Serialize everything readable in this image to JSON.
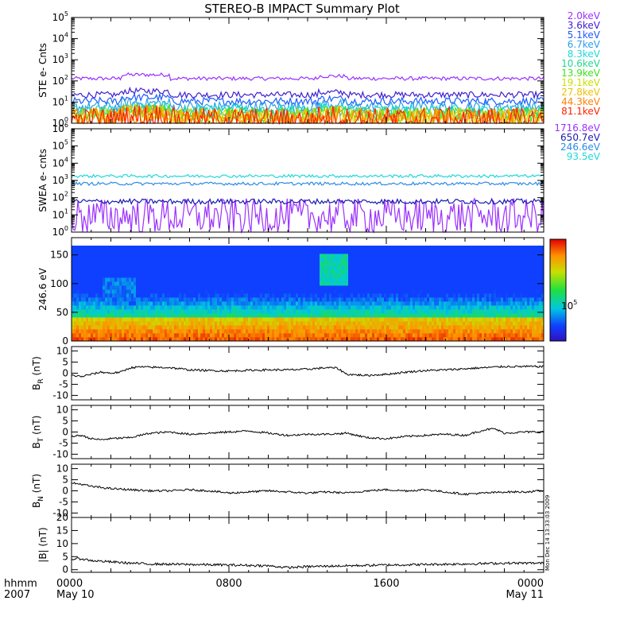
{
  "title": "STEREO-B IMPACT Summary Plot",
  "footer": {
    "row_label": "hhmm",
    "year": "2007",
    "date_start": "May 10",
    "date_end": "May 11"
  },
  "timestamp": "Mon Dec 14 13:33:03 2009",
  "chart_data": [
    {
      "id": "ste",
      "type": "line",
      "ylabel": "STE e- Cnts",
      "yscale": "log",
      "ylim": [
        1,
        100000
      ],
      "yticks": [
        {
          "value": 1,
          "base": "10",
          "exp": "0"
        },
        {
          "value": 10,
          "base": "10",
          "exp": "1"
        },
        {
          "value": 100,
          "base": "10",
          "exp": "2"
        },
        {
          "value": 1000,
          "base": "10",
          "exp": "3"
        },
        {
          "value": 10000,
          "base": "10",
          "exp": "4"
        },
        {
          "value": 100000,
          "base": "10",
          "exp": "5"
        }
      ],
      "xlim": [
        0,
        24
      ],
      "series": [
        {
          "name": "2.0keV",
          "color": "#9b30ff",
          "level": 130,
          "noise": 0.03
        },
        {
          "name": "3.6keV",
          "color": "#4020d0",
          "level": 22,
          "noise": 0.05
        },
        {
          "name": "5.1keV",
          "color": "#1e5aff",
          "level": 11,
          "noise": 0.06
        },
        {
          "name": "6.7keV",
          "color": "#2aa0e6",
          "level": 6,
          "noise": 0.08
        },
        {
          "name": "8.3keV",
          "color": "#20d8d8",
          "level": 4,
          "noise": 0.09
        },
        {
          "name": "10.6keV",
          "color": "#20d890",
          "level": 3,
          "noise": 0.1
        },
        {
          "name": "13.9keV",
          "color": "#40e020",
          "level": 2.4,
          "noise": 0.12
        },
        {
          "name": "19.1keV",
          "color": "#c8e000",
          "level": 2,
          "noise": 0.14
        },
        {
          "name": "27.8keV",
          "color": "#f0c000",
          "level": 1.7,
          "noise": 0.16
        },
        {
          "name": "44.3keV",
          "color": "#ff8000",
          "level": 1.5,
          "noise": 0.18
        },
        {
          "name": "81.1keV",
          "color": "#ff2000",
          "level": 1.4,
          "noise": 0.2
        }
      ]
    },
    {
      "id": "swea",
      "type": "line",
      "ylabel": "SWEA e- cnts",
      "yscale": "log",
      "ylim": [
        1,
        1000000
      ],
      "yticks": [
        {
          "value": 1,
          "base": "10",
          "exp": "0"
        },
        {
          "value": 10,
          "base": "10",
          "exp": "1"
        },
        {
          "value": 100,
          "base": "10",
          "exp": "2"
        },
        {
          "value": 1000,
          "base": "10",
          "exp": "3"
        },
        {
          "value": 10000,
          "base": "10",
          "exp": "4"
        },
        {
          "value": 100000,
          "base": "10",
          "exp": "5"
        },
        {
          "value": 1000000,
          "base": "10",
          "exp": "6"
        }
      ],
      "xlim": [
        0,
        24
      ],
      "series": [
        {
          "name": "1716.8eV",
          "color": "#9b30ff",
          "level": 8,
          "noise": 0.35
        },
        {
          "name": "650.7eV",
          "color": "#1a1ab0",
          "level": 60,
          "noise": 0.05
        },
        {
          "name": "246.6eV",
          "color": "#2a8ae6",
          "level": 650,
          "noise": 0.03
        },
        {
          "name": "93.5eV",
          "color": "#20d8d8",
          "level": 1800,
          "noise": 0.03
        }
      ]
    },
    {
      "id": "pad",
      "type": "heatmap",
      "ylabel": "246.6 eV",
      "ylim": [
        0,
        180
      ],
      "yticks": [
        0,
        50,
        100,
        150
      ],
      "xlim": [
        0,
        24
      ],
      "colorbar": {
        "label": "10",
        "label_exp": "5"
      }
    },
    {
      "id": "br",
      "type": "line",
      "ylabel_base": "B",
      "ylabel_sub": "R",
      "ylabel_unit": "(nT)",
      "ylim": [
        -12,
        12
      ],
      "yticks": [
        -10,
        -5,
        0,
        5,
        10
      ],
      "xlim": [
        0,
        24
      ],
      "x": [
        0,
        0.5,
        1.0,
        1.5,
        2.0,
        2.5,
        3.0,
        3.5,
        4.0,
        5.0,
        6.0,
        7.0,
        8.0,
        9.0,
        10.0,
        11.0,
        12.0,
        13.0,
        13.5,
        14.0,
        15.0,
        16.0,
        17.0,
        18.0,
        19.0,
        20.0,
        21.0,
        22.0,
        23.0,
        24.0
      ],
      "values": [
        -1,
        -1.5,
        -0.5,
        0.5,
        0,
        0.5,
        2.5,
        2.8,
        2.7,
        2.5,
        1.5,
        1.2,
        1.0,
        1.3,
        1.5,
        1.5,
        1.8,
        2.5,
        2.3,
        -0.5,
        -1.0,
        -0.5,
        0.5,
        1.2,
        1.5,
        2.0,
        2.5,
        3.0,
        3.0,
        3.0
      ]
    },
    {
      "id": "bt",
      "type": "line",
      "ylabel_base": "B",
      "ylabel_sub": "T",
      "ylabel_unit": "(nT)",
      "ylim": [
        -12,
        12
      ],
      "yticks": [
        -10,
        -5,
        0,
        5,
        10
      ],
      "xlim": [
        0,
        24
      ],
      "x": [
        0,
        0.5,
        1.0,
        1.5,
        2.0,
        3.0,
        4.0,
        5.0,
        6.0,
        7.0,
        8.0,
        9.0,
        10.0,
        11.0,
        12.0,
        13.0,
        14.0,
        15.0,
        16.0,
        17.0,
        18.0,
        19.0,
        20.0,
        21.0,
        21.5,
        22.0,
        23.0,
        24.0
      ],
      "values": [
        -2,
        -1.5,
        -3,
        -3.5,
        -3,
        -2.5,
        -0.5,
        0,
        -1,
        -0.5,
        0,
        0.5,
        -0.5,
        -1.5,
        -1,
        -1,
        -0.5,
        -2.5,
        -3,
        -2,
        -1.5,
        -1,
        -1.5,
        1,
        1.5,
        -0.5,
        0,
        0
      ]
    },
    {
      "id": "bn",
      "type": "line",
      "ylabel_base": "B",
      "ylabel_sub": "N",
      "ylabel_unit": "(nT)",
      "ylim": [
        -12,
        12
      ],
      "yticks": [
        -10,
        -5,
        0,
        5,
        10
      ],
      "xlim": [
        0,
        24
      ],
      "x": [
        0,
        0.5,
        1.0,
        1.5,
        2.0,
        3.0,
        4.0,
        5.0,
        6.0,
        7.0,
        8.0,
        9.0,
        10.0,
        11.0,
        12.0,
        13.0,
        14.0,
        15.0,
        16.0,
        17.0,
        18.0,
        19.0,
        20.0,
        21.0,
        22.0,
        23.0,
        24.0
      ],
      "values": [
        3.5,
        3,
        2,
        1.5,
        1,
        0.5,
        0,
        0,
        0.5,
        0,
        -1,
        -0.5,
        0,
        -0.5,
        -1,
        -0.5,
        -1,
        0,
        0.5,
        0,
        0.5,
        -0.5,
        -1.5,
        -1,
        -0.5,
        -0.5,
        0
      ]
    },
    {
      "id": "bmag",
      "type": "line",
      "ylabel": "|B| (nT)",
      "ylim": [
        -1,
        20
      ],
      "yticks": [
        0,
        5,
        10,
        15,
        20
      ],
      "xlim": [
        0,
        24
      ],
      "x": [
        0,
        0.5,
        1.0,
        2.0,
        3.0,
        4.0,
        6.0,
        8.0,
        10.0,
        11.0,
        12.0,
        14.0,
        16.0,
        18.0,
        20.0,
        22.0,
        24.0
      ],
      "values": [
        4,
        4.2,
        3.5,
        3,
        2.5,
        2.2,
        2,
        1.8,
        1.5,
        0.8,
        1.2,
        1.5,
        1.8,
        2,
        2.2,
        2.5,
        2.5
      ]
    }
  ],
  "xaxis": {
    "ticks": [
      {
        "hour": 0,
        "label": "0000"
      },
      {
        "hour": 8,
        "label": "0800"
      },
      {
        "hour": 16,
        "label": "1600"
      },
      {
        "hour": 24,
        "label": "0000"
      }
    ]
  }
}
